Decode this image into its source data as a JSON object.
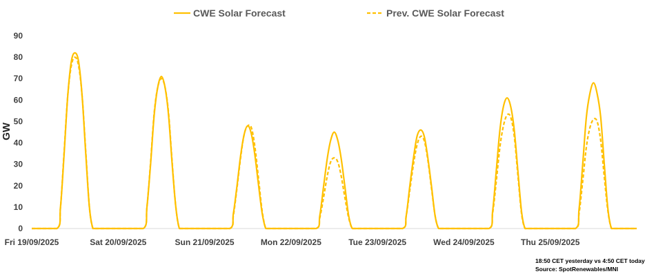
{
  "chart_data": {
    "type": "line",
    "title": "",
    "xlabel": "",
    "ylabel": "GW",
    "ylim": [
      0,
      90
    ],
    "yticks": [
      0,
      10,
      20,
      30,
      40,
      50,
      60,
      70,
      80,
      90
    ],
    "day_labels": [
      "Fri 19/09/2025",
      "Sat 20/09/2025",
      "Sun 21/09/2025",
      "Mon 22/09/2025",
      "Tue 23/09/2025",
      "Wed 24/09/2025",
      "Thu 25/09/2025"
    ],
    "x_range_days": [
      0,
      7
    ],
    "legend_position": "top",
    "colors": {
      "series": "#FFC000",
      "axis": "#D9D9D9"
    },
    "series": [
      {
        "name": "CWE Solar Forecast",
        "style": "solid",
        "x": [
          0,
          0.292,
          0.333,
          0.375,
          0.417,
          0.458,
          0.5,
          0.542,
          0.583,
          0.625,
          0.667,
          0.708,
          0.75,
          1.0,
          1.292,
          1.333,
          1.375,
          1.417,
          1.458,
          1.5,
          1.542,
          1.583,
          1.625,
          1.667,
          1.708,
          1.75,
          2.0,
          2.292,
          2.333,
          2.375,
          2.417,
          2.458,
          2.5,
          2.542,
          2.583,
          2.625,
          2.667,
          2.708,
          2.75,
          3.0,
          3.292,
          3.333,
          3.375,
          3.417,
          3.458,
          3.5,
          3.542,
          3.583,
          3.625,
          3.667,
          3.708,
          3.75,
          4.0,
          4.292,
          4.333,
          4.375,
          4.417,
          4.458,
          4.5,
          4.542,
          4.583,
          4.625,
          4.667,
          4.708,
          4.75,
          5.0,
          5.292,
          5.333,
          5.375,
          5.417,
          5.458,
          5.5,
          5.542,
          5.583,
          5.625,
          5.667,
          5.708,
          5.75,
          6.0,
          6.292,
          6.333,
          6.375,
          6.417,
          6.458,
          6.5,
          6.542,
          6.583,
          6.625,
          6.667,
          6.708,
          6.75,
          7.0
        ],
        "values": [
          0,
          0,
          10,
          35,
          62,
          78,
          82,
          78,
          62,
          35,
          10,
          0,
          0,
          0,
          0,
          10,
          30,
          53,
          66,
          71,
          66,
          53,
          30,
          10,
          0,
          0,
          0,
          0,
          7,
          20,
          34,
          44,
          48,
          44,
          34,
          20,
          7,
          0,
          0,
          0,
          0,
          6,
          19,
          32,
          41,
          45,
          41,
          32,
          19,
          6,
          0,
          0,
          0,
          0,
          6,
          20,
          33,
          43,
          46,
          43,
          33,
          20,
          6,
          0,
          0,
          0,
          0,
          8,
          27,
          46,
          57,
          61,
          57,
          46,
          27,
          8,
          0,
          0,
          0,
          0,
          9,
          30,
          52,
          63,
          68,
          63,
          52,
          30,
          9,
          0,
          0,
          0
        ]
      },
      {
        "name": "Prev. CWE Solar Forecast",
        "style": "dashed",
        "x": [
          0,
          0.292,
          0.333,
          0.375,
          0.417,
          0.458,
          0.5,
          0.542,
          0.583,
          0.625,
          0.667,
          0.708,
          0.75,
          1.0,
          1.292,
          1.333,
          1.375,
          1.417,
          1.458,
          1.5,
          1.542,
          1.583,
          1.625,
          1.667,
          1.708,
          1.75,
          2.0,
          2.292,
          2.333,
          2.375,
          2.417,
          2.458,
          2.5,
          2.542,
          2.583,
          2.625,
          2.667,
          2.708,
          2.75,
          3.0,
          3.292,
          3.333,
          3.375,
          3.417,
          3.458,
          3.5,
          3.542,
          3.583,
          3.625,
          3.667,
          3.708,
          3.75,
          4.0,
          4.292,
          4.333,
          4.375,
          4.417,
          4.458,
          4.5,
          4.542,
          4.583,
          4.625,
          4.667,
          4.708,
          4.75,
          5.0,
          5.292,
          5.333,
          5.375,
          5.417,
          5.458,
          5.5,
          5.542,
          5.583,
          5.625,
          5.667,
          5.708,
          5.75,
          6.0,
          6.292,
          6.333,
          6.375,
          6.417,
          6.458,
          6.5,
          6.542,
          6.583,
          6.625,
          6.667,
          6.708,
          6.75,
          7.0
        ],
        "values": [
          0,
          0,
          10,
          36,
          62,
          76,
          80,
          76,
          62,
          36,
          10,
          0,
          0,
          0,
          0,
          10,
          31,
          54,
          66,
          70,
          66,
          54,
          31,
          10,
          0,
          0,
          0,
          0,
          6,
          19,
          33,
          44,
          48,
          47,
          38,
          23,
          8,
          0,
          0,
          0,
          0,
          5,
          14,
          24,
          31,
          33,
          31,
          24,
          14,
          5,
          0,
          0,
          0,
          0,
          6,
          18,
          30,
          39,
          43,
          41,
          32,
          19,
          6,
          0,
          0,
          0,
          0,
          7,
          22,
          38,
          48,
          53,
          52,
          43,
          25,
          7,
          0,
          0,
          0,
          0,
          7,
          22,
          38,
          47,
          51,
          50,
          41,
          24,
          8,
          0,
          0,
          0
        ]
      }
    ],
    "annotations": [
      "18:50 CET yesterday vs  4:50 CET today",
      "Source: SpotRenewables/MNI"
    ]
  }
}
